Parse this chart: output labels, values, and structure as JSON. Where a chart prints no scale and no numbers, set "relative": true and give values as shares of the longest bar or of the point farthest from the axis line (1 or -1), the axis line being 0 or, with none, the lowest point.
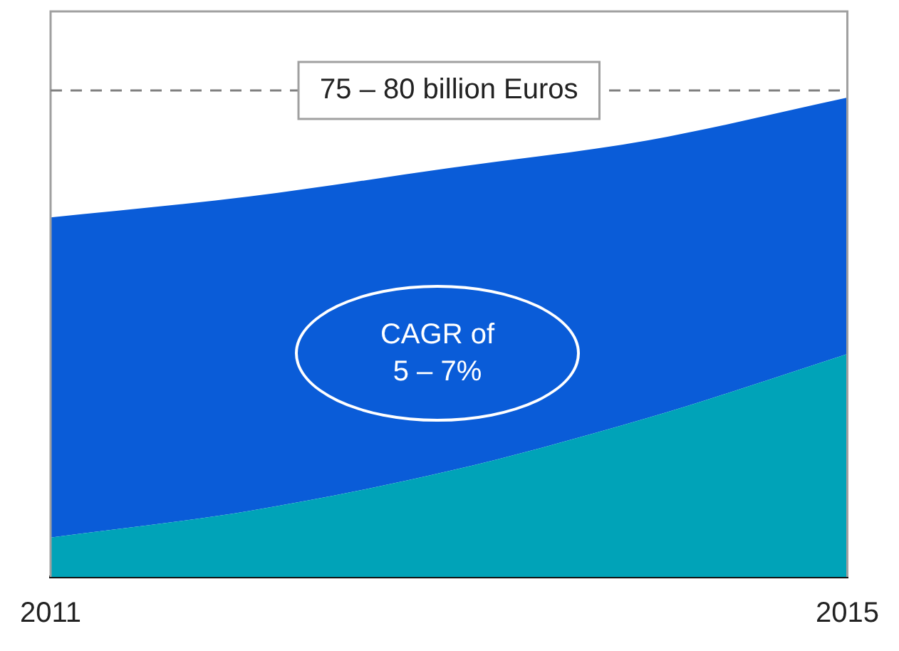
{
  "chart_data": {
    "type": "area",
    "stacked": true,
    "relative": true,
    "categories": [
      "2011",
      null,
      null,
      null,
      "2015"
    ],
    "series": [
      {
        "color": "#00a3b8",
        "values": [
          0.082,
          0.138,
          0.221,
          0.332,
          0.465
        ]
      },
      {
        "color": "#0a5cd8",
        "values": [
          0.668,
          0.656,
          0.632,
          0.579,
          0.535
        ]
      }
    ],
    "ref_lines": [
      {
        "axis": "y",
        "value": 1.015,
        "label": "75 – 80 billion Euros",
        "color": "#808080",
        "line_style": "dashed"
      }
    ],
    "annotations": [
      "CAGR of 5 – 7%"
    ]
  }
}
